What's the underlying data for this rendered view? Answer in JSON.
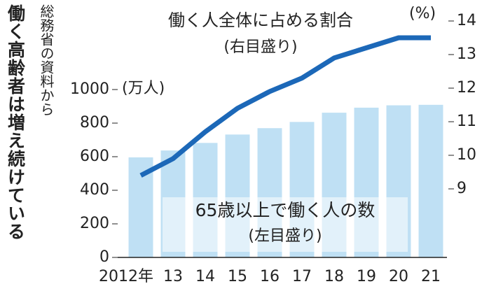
{
  "chart_data": {
    "type": "bar_line",
    "title": "働く高齢者は増え続けている",
    "source": "総務省の資料から",
    "categories": [
      "2012年",
      "13",
      "14",
      "15",
      "16",
      "17",
      "18",
      "19",
      "20",
      "21"
    ],
    "series": [
      {
        "name": "65歳以上で働く人の数",
        "note": "(左目盛り)",
        "type": "bar",
        "color": "#bfe0f4",
        "values": [
          596,
          637,
          682,
          732,
          770,
          807,
          862,
          892,
          906,
          909
        ]
      },
      {
        "name": "働く人全体に占める割合",
        "note": "(右目盛り)",
        "type": "line",
        "axis": "y2",
        "color": "#1c68b8",
        "values": [
          9.4,
          9.9,
          10.7,
          11.4,
          11.9,
          12.3,
          12.9,
          13.2,
          13.5,
          13.5
        ]
      }
    ],
    "ylabel": "(万人)",
    "y2label": "(%)",
    "ylim": [
      0,
      1000
    ],
    "yticks": [
      0,
      200,
      400,
      600,
      800,
      1000
    ],
    "y2lim": [
      9,
      14
    ],
    "y2ticks": [
      9,
      10,
      11,
      12,
      13,
      14
    ],
    "grid": false
  }
}
